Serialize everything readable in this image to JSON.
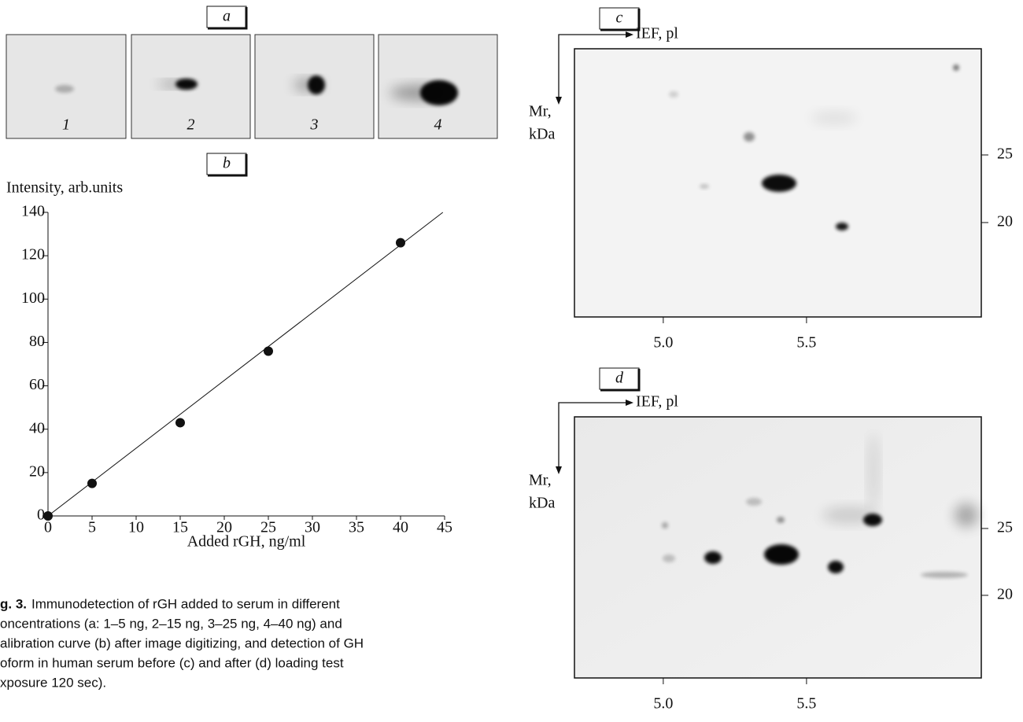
{
  "panels": {
    "a": {
      "letter": "a",
      "lanes": [
        "1",
        "2",
        "3",
        "4"
      ]
    }
  },
  "chart_data": [
    {
      "type": "line",
      "letter": "b",
      "y_label": "Intensity, arb.units",
      "x_label": "Added rGH, ng/ml",
      "x": [
        0,
        5,
        15,
        25,
        40
      ],
      "values": [
        0,
        15,
        43,
        76,
        126
      ],
      "color": "#111111",
      "trend_line": {
        "x": [
          0,
          44.8
        ],
        "values": [
          0,
          140
        ]
      },
      "xlim": [
        0,
        45
      ],
      "ylim": [
        0,
        140
      ],
      "xticks": [
        0,
        5,
        10,
        15,
        20,
        25,
        30,
        35,
        40,
        45
      ],
      "yticks": [
        0,
        20,
        40,
        60,
        80,
        100,
        120,
        140
      ]
    },
    {
      "type": "gel",
      "letter": "c",
      "x_label": "IEF, pl",
      "y_label": [
        "Mr,",
        "kDa"
      ],
      "xlim": [
        4.69,
        6.11
      ],
      "ylim": [
        13.02,
        32.85
      ],
      "xticks": [
        {
          "value": 5,
          "label": "5.0"
        },
        {
          "value": 5.5,
          "label": "5.5"
        }
      ],
      "yticks": [
        25,
        20
      ]
    },
    {
      "type": "gel",
      "letter": "d",
      "x_label": "IEF, pl",
      "y_label": [
        "Mr,",
        "kDa"
      ],
      "xlim": [
        4.69,
        6.11
      ],
      "ylim": [
        13.82,
        33.35
      ],
      "xticks": [
        {
          "value": 5,
          "label": "5.0"
        },
        {
          "value": 5.5,
          "label": "5.5"
        }
      ],
      "yticks": [
        25,
        20
      ]
    }
  ],
  "caption": {
    "label": "g. 3.",
    "lines": [
      "Immunodetection of rGH added to serum in different",
      "oncentrations (a: 1–5 ng, 2–15 ng, 3–25 ng, 4–40 ng) and",
      "alibration curve (b) after image digitizing, and detection of GH",
      "oform in human serum before (c) and after (d) loading test",
      "xposure 120 sec)."
    ]
  }
}
